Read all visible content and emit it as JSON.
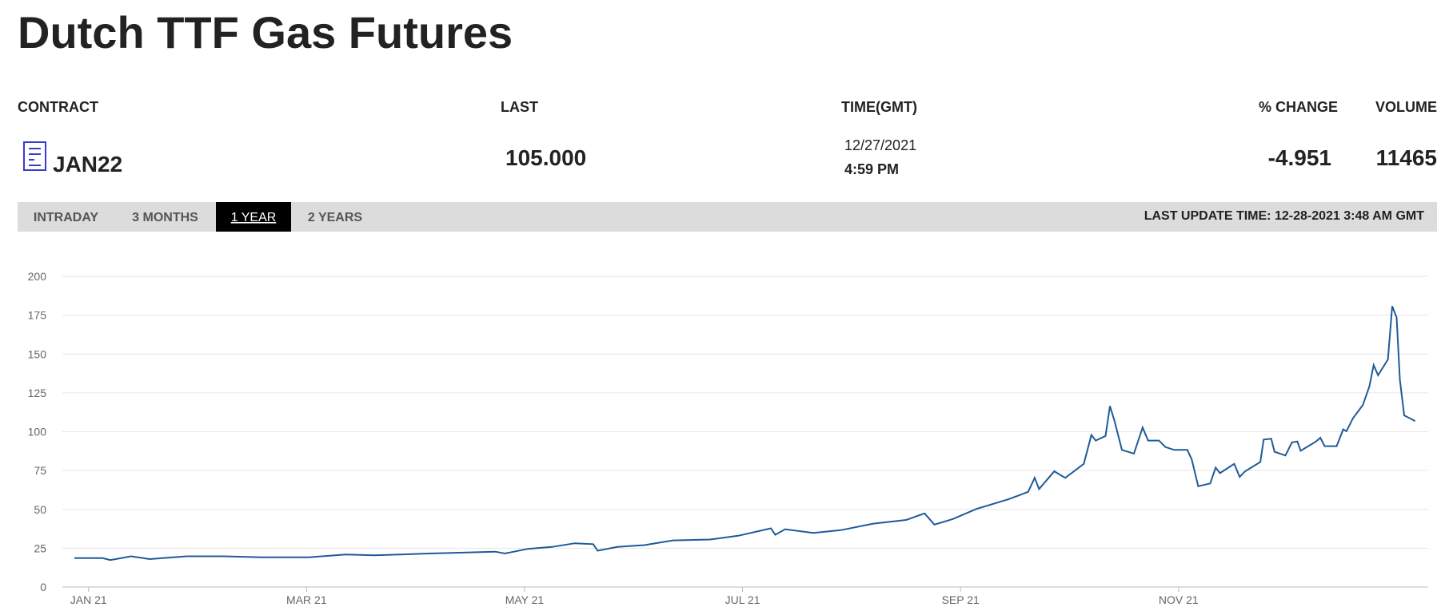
{
  "header": {
    "title": "Dutch TTF Gas Futures"
  },
  "quote": {
    "columns": [
      "CONTRACT",
      "LAST",
      "TIME(GMT)",
      "% CHANGE",
      "VOLUME"
    ],
    "contract": "JAN22",
    "last": "105.000",
    "date": "12/27/2021",
    "time": "4:59 PM",
    "change": "-4.951",
    "volume": "11465"
  },
  "tabs": [
    "INTRADAY",
    "3 MONTHS",
    "1 YEAR",
    "2 YEARS"
  ],
  "active_tab": 2,
  "last_update": "LAST UPDATE TIME: 12-28-2021 3:48 AM GMT",
  "chart_data": {
    "type": "line",
    "color": "#1f5a9a",
    "grid": true,
    "xlim": [
      -0.24,
      12.29
    ],
    "ylim": [
      0,
      200
    ],
    "yticks": [
      0,
      25,
      50,
      75,
      100,
      125,
      150,
      175,
      200
    ],
    "xticks": [
      {
        "value": 0,
        "label": "JAN 21"
      },
      {
        "value": 2,
        "label": "MAR 21"
      },
      {
        "value": 4,
        "label": "MAY 21"
      },
      {
        "value": 6,
        "label": "JUL 21"
      },
      {
        "value": 8,
        "label": "SEP 21"
      },
      {
        "value": 10,
        "label": "NOV 21"
      }
    ],
    "series": [
      {
        "name": "JAN22",
        "x": [
          -0.13,
          0.13,
          0.2,
          0.39,
          0.56,
          0.9,
          1.24,
          1.59,
          2.02,
          2.36,
          2.62,
          3.13,
          3.47,
          3.73,
          3.82,
          4.03,
          4.25,
          4.46,
          4.63,
          4.67,
          4.85,
          5.1,
          5.36,
          5.7,
          5.96,
          6.26,
          6.3,
          6.39,
          6.65,
          6.9,
          7.2,
          7.5,
          7.67,
          7.76,
          7.93,
          8.15,
          8.44,
          8.62,
          8.68,
          8.72,
          8.86,
          8.96,
          9.13,
          9.2,
          9.24,
          9.33,
          9.37,
          9.41,
          9.48,
          9.59,
          9.67,
          9.72,
          9.82,
          9.88,
          9.96,
          10.08,
          10.12,
          10.18,
          10.29,
          10.34,
          10.38,
          10.51,
          10.56,
          10.61,
          10.75,
          10.78,
          10.85,
          10.88,
          10.98,
          11.04,
          11.09,
          11.12,
          11.26,
          11.3,
          11.34,
          11.45,
          11.51,
          11.54,
          11.6,
          11.69,
          11.75,
          11.79,
          11.83,
          11.92,
          11.96,
          12.0,
          12.03,
          12.07,
          12.17
        ],
        "values": [
          18.6,
          18.6,
          17.4,
          19.8,
          18,
          19.8,
          19.8,
          19.2,
          19.2,
          21,
          20.4,
          21.6,
          22.2,
          22.8,
          21.6,
          24.6,
          25.8,
          28.2,
          27.6,
          23.4,
          25.8,
          27,
          30,
          30.6,
          33,
          37.8,
          33.6,
          37.2,
          34.8,
          36.6,
          40.8,
          43.2,
          47.4,
          40.2,
          43.8,
          50.4,
          56.5,
          61.3,
          70.3,
          63.1,
          74.5,
          70.3,
          79.3,
          97.9,
          94.3,
          97.3,
          116.5,
          107.5,
          88.3,
          85.9,
          102.7,
          94.3,
          94.3,
          90.1,
          88.3,
          88.3,
          82.3,
          64.9,
          66.7,
          76.9,
          73.3,
          79.3,
          70.9,
          74.5,
          80.5,
          94.9,
          95.5,
          87.1,
          84.7,
          93.1,
          93.7,
          87.7,
          93.7,
          96.1,
          90.7,
          90.7,
          101.5,
          100.3,
          108.7,
          117.1,
          129.1,
          142.9,
          136.3,
          146.5,
          180.8,
          173.5,
          133.3,
          110.5,
          106.9
        ]
      }
    ]
  }
}
